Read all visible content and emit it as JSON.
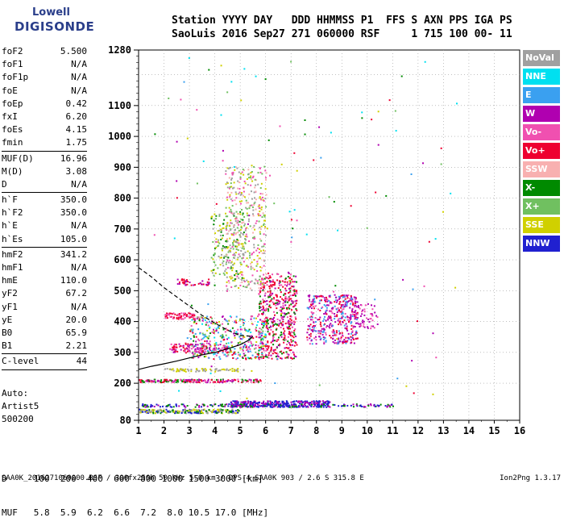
{
  "logo": {
    "line1": "Lowell",
    "line2": "DIGISONDE"
  },
  "header": {
    "line1": "Station YYYY DAY   DDD HHMMSS P1  FFS S AXN PPS IGA PS",
    "line2": "SaoLuis 2016 Sep27 271 060000 RSF     1 715 100 00- 11"
  },
  "params": {
    "group1": [
      {
        "k": "foF2",
        "v": "5.500"
      },
      {
        "k": "foF1",
        "v": "N/A"
      },
      {
        "k": "foF1p",
        "v": "N/A"
      },
      {
        "k": "foE",
        "v": "N/A"
      },
      {
        "k": "foEp",
        "v": "0.42"
      },
      {
        "k": "fxI",
        "v": "6.20"
      },
      {
        "k": "foEs",
        "v": "4.15"
      },
      {
        "k": "fmin",
        "v": "1.75"
      }
    ],
    "group2": [
      {
        "k": "MUF(D)",
        "v": "16.96"
      },
      {
        "k": "M(D)",
        "v": "3.08"
      },
      {
        "k": "D",
        "v": "N/A"
      }
    ],
    "group3": [
      {
        "k": "h`F",
        "v": "350.0"
      },
      {
        "k": "h`F2",
        "v": "350.0"
      },
      {
        "k": "h`E",
        "v": "N/A"
      },
      {
        "k": "h`Es",
        "v": "105.0"
      }
    ],
    "group4": [
      {
        "k": "hmF2",
        "v": "341.2"
      },
      {
        "k": "hmF1",
        "v": "N/A"
      },
      {
        "k": "hmE",
        "v": "110.0"
      },
      {
        "k": "yF2",
        "v": "67.2"
      },
      {
        "k": "yF1",
        "v": "N/A"
      },
      {
        "k": "yE",
        "v": "20.0"
      },
      {
        "k": "B0",
        "v": "65.9"
      },
      {
        "k": "B1",
        "v": "2.21"
      }
    ],
    "group5": [
      {
        "k": "C-level",
        "v": "44"
      }
    ]
  },
  "auto": {
    "l1": "Auto:",
    "l2": "Artist5",
    "l3": "500200"
  },
  "legend": [
    {
      "label": "NoVal",
      "color": "#a0a0a0"
    },
    {
      "label": "NNE",
      "color": "#00e0f0"
    },
    {
      "label": "E",
      "color": "#3aa0f0"
    },
    {
      "label": "W",
      "color": "#b000b0"
    },
    {
      "label": "Vo-",
      "color": "#f050b0"
    },
    {
      "label": "Vo+",
      "color": "#ee0030"
    },
    {
      "label": "SSW",
      "color": "#f8b0b0"
    },
    {
      "label": "X-",
      "color": "#008a00"
    },
    {
      "label": "X+",
      "color": "#70c060"
    },
    {
      "label": "SSE",
      "color": "#d0d000"
    },
    {
      "label": "NNW",
      "color": "#2020d0"
    }
  ],
  "dtable": {
    "row1": "D     100  200  400  600  800 1000 1500 3000 [km]",
    "row2": "MUF   5.8  5.9  6.2  6.6  7.2  8.0 10.5 17.0 [MHz]"
  },
  "footer": "SAA0K_2016271060000.RSF / 300fx256h 50 kHz 5.0 km / DPS-4 SAA0K 903 / 2.6 S 315.8 E",
  "version": "Ion2Png 1.3.17",
  "chart_data": {
    "type": "scatter",
    "title": "",
    "xlabel": "",
    "ylabel": "",
    "xlim": [
      1,
      16
    ],
    "ylim": [
      80,
      1280
    ],
    "x_ticks": [
      "1",
      "2",
      "3",
      "4",
      "5",
      "6",
      "7",
      "8",
      "9",
      "10",
      "11",
      "12",
      "13",
      "14",
      "15",
      "16"
    ],
    "y_ticks": [
      "80",
      "200",
      "300",
      "400",
      "500",
      "600",
      "700",
      "800",
      "900",
      "1000",
      "1100",
      "1280"
    ],
    "grid": true,
    "series": [
      {
        "name": "profile",
        "points": [
          [
            1,
            245
          ],
          [
            1.5,
            255
          ],
          [
            2,
            263
          ],
          [
            2.5,
            272
          ],
          [
            3,
            282
          ],
          [
            3.5,
            292
          ],
          [
            4,
            300
          ],
          [
            4.5,
            312
          ],
          [
            5,
            325
          ],
          [
            5.3,
            338
          ],
          [
            5.5,
            352
          ]
        ]
      },
      {
        "name": "",
        "points": [
          [
            1,
            575
          ],
          [
            1.5,
            545
          ],
          [
            2,
            510
          ],
          [
            2.5,
            480
          ],
          [
            3,
            450
          ],
          [
            3.5,
            420
          ],
          [
            4,
            395
          ],
          [
            4.5,
            372
          ],
          [
            5,
            355
          ],
          [
            5.5,
            352
          ]
        ]
      }
    ]
  }
}
